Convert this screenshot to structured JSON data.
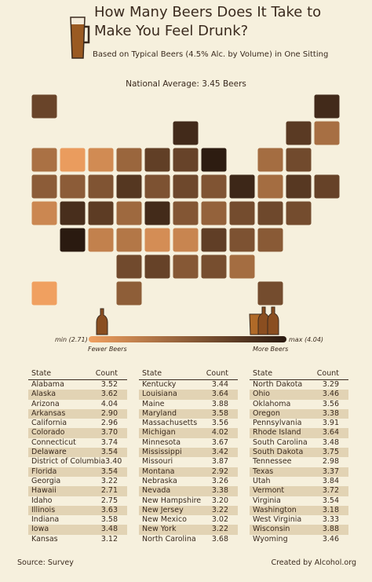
{
  "header": {
    "title": "How Many Beers Does It Take to Make You Feel Drunk?",
    "subtitle": "Based on Typical Beers (4.5% Alc. by Volume) in One Sitting"
  },
  "national_average": "National Average: 3.45 Beers",
  "legend": {
    "min": {
      "value": 2.71,
      "label": "min (2.71)"
    },
    "max": {
      "value": 4.04,
      "label": "max (4.04)"
    },
    "fewer": "Fewer Beers",
    "more": "More Beers"
  },
  "tables": [
    {
      "columns": [
        "State",
        "Count"
      ],
      "rows": [
        [
          "Alabama",
          "3.52"
        ],
        [
          "Alaska",
          "3.62"
        ],
        [
          "Arizona",
          "4.04"
        ],
        [
          "Arkansas",
          "2.90"
        ],
        [
          "California",
          "2.96"
        ],
        [
          "Colorado",
          "3.70"
        ],
        [
          "Connecticut",
          "3.74"
        ],
        [
          "Delaware",
          "3.54"
        ],
        [
          "District of Columbia",
          "3.40"
        ],
        [
          "Florida",
          "3.54"
        ],
        [
          "Georgia",
          "3.22"
        ],
        [
          "Hawaii",
          "2.71"
        ],
        [
          "Idaho",
          "2.75"
        ],
        [
          "Illinois",
          "3.63"
        ],
        [
          "Indiana",
          "3.58"
        ],
        [
          "Iowa",
          "3.48"
        ],
        [
          "Kansas",
          "3.12"
        ]
      ]
    },
    {
      "columns": [
        "State",
        "Count"
      ],
      "rows": [
        [
          "Kentucky",
          "3.44"
        ],
        [
          "Louisiana",
          "3.64"
        ],
        [
          "Maine",
          "3.88"
        ],
        [
          "Maryland",
          "3.58"
        ],
        [
          "Massachusetts",
          "3.56"
        ],
        [
          "Michigan",
          "4.02"
        ],
        [
          "Minnesota",
          "3.67"
        ],
        [
          "Mississippi",
          "3.42"
        ],
        [
          "Missouri",
          "3.87"
        ],
        [
          "Montana",
          "2.92"
        ],
        [
          "Nebraska",
          "3.26"
        ],
        [
          "Nevada",
          "3.38"
        ],
        [
          "New Hampshire",
          "3.20"
        ],
        [
          "New Jersey",
          "3.22"
        ],
        [
          "New Mexico",
          "3.02"
        ],
        [
          "New York",
          "3.22"
        ],
        [
          "North Carolina",
          "3.68"
        ]
      ]
    },
    {
      "columns": [
        "State",
        "Count"
      ],
      "rows": [
        [
          "North Dakota",
          "3.29"
        ],
        [
          "Ohio",
          "3.46"
        ],
        [
          "Oklahoma",
          "3.56"
        ],
        [
          "Oregon",
          "3.38"
        ],
        [
          "Pennsylvania",
          "3.91"
        ],
        [
          "Rhode Island",
          "3.64"
        ],
        [
          "South Carolina",
          "3.48"
        ],
        [
          "South Dakota",
          "3.75"
        ],
        [
          "Tennessee",
          "2.98"
        ],
        [
          "Texas",
          "3.37"
        ],
        [
          "Utah",
          "3.84"
        ],
        [
          "Vermont",
          "3.72"
        ],
        [
          "Virginia",
          "3.54"
        ],
        [
          "Washington",
          "3.18"
        ],
        [
          "West Virginia",
          "3.33"
        ],
        [
          "Wisconsin",
          "3.88"
        ],
        [
          "Wyoming",
          "3.46"
        ]
      ]
    }
  ],
  "footer": {
    "source": "Source: Survey",
    "credit": "Created by Alcohol.org"
  }
}
